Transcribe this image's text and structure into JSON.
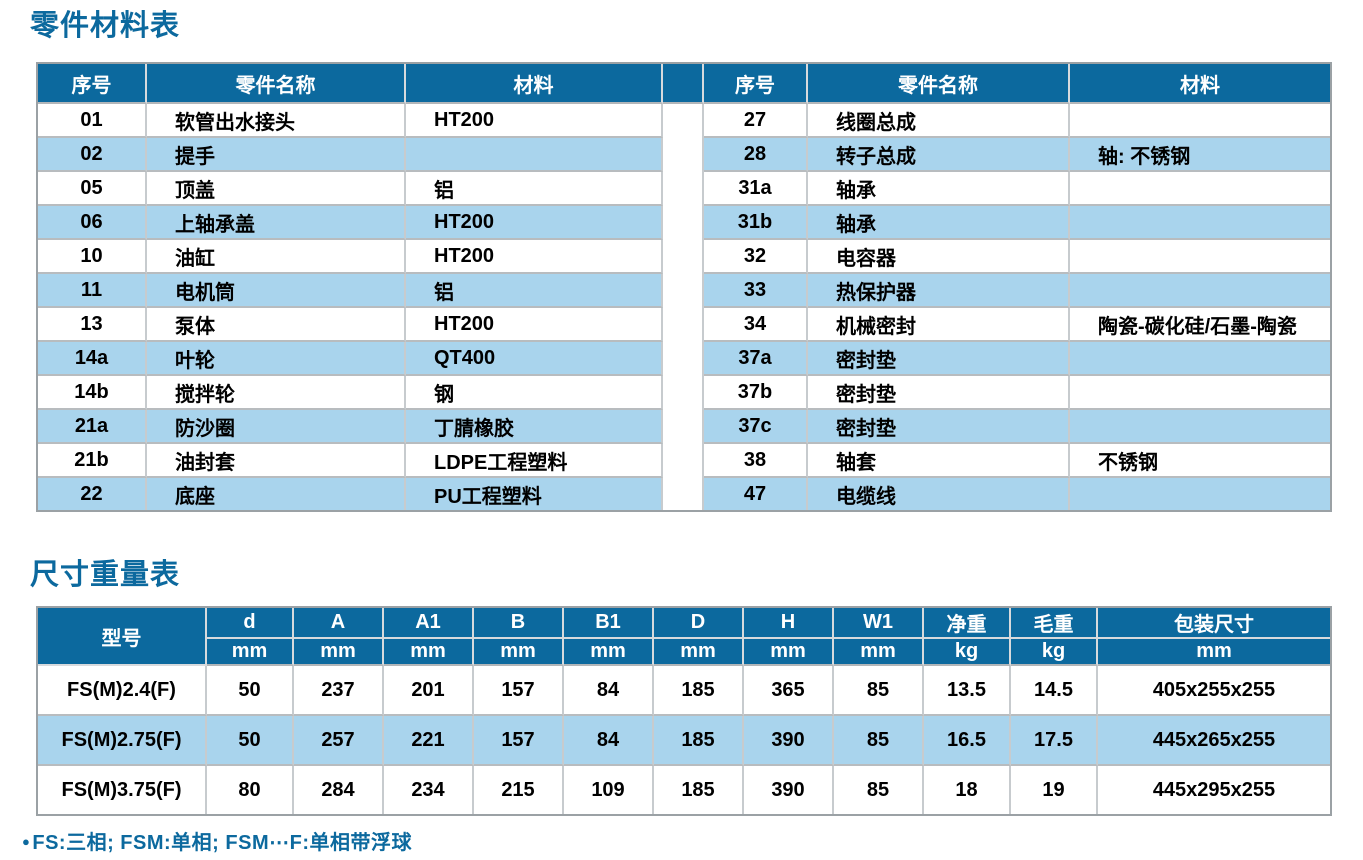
{
  "sections": {
    "parts": {
      "title": "零件材料表"
    },
    "size": {
      "title": "尺寸重量表"
    }
  },
  "parts_table": {
    "headers": [
      "序号",
      "零件名称",
      "材料"
    ],
    "left_rows": [
      {
        "no": "01",
        "name": "软管出水接头",
        "material": "HT200"
      },
      {
        "no": "02",
        "name": "提手",
        "material": ""
      },
      {
        "no": "05",
        "name": "顶盖",
        "material": "铝"
      },
      {
        "no": "06",
        "name": "上轴承盖",
        "material": "HT200"
      },
      {
        "no": "10",
        "name": "油缸",
        "material": "HT200"
      },
      {
        "no": "11",
        "name": "电机筒",
        "material": "铝"
      },
      {
        "no": "13",
        "name": "泵体",
        "material": "HT200"
      },
      {
        "no": "14a",
        "name": "叶轮",
        "material": "QT400"
      },
      {
        "no": "14b",
        "name": "搅拌轮",
        "material": "钢"
      },
      {
        "no": "21a",
        "name": "防沙圈",
        "material": "丁腈橡胶"
      },
      {
        "no": "21b",
        "name": "油封套",
        "material": "LDPE工程塑料"
      },
      {
        "no": "22",
        "name": "底座",
        "material": "PU工程塑料"
      }
    ],
    "right_rows": [
      {
        "no": "27",
        "name": "线圈总成",
        "material": ""
      },
      {
        "no": "28",
        "name": "转子总成",
        "material": "轴: 不锈钢"
      },
      {
        "no": "31a",
        "name": "轴承",
        "material": ""
      },
      {
        "no": "31b",
        "name": "轴承",
        "material": ""
      },
      {
        "no": "32",
        "name": "电容器",
        "material": ""
      },
      {
        "no": "33",
        "name": "热保护器",
        "material": ""
      },
      {
        "no": "34",
        "name": "机械密封",
        "material": "陶瓷-碳化硅/石墨-陶瓷"
      },
      {
        "no": "37a",
        "name": "密封垫",
        "material": ""
      },
      {
        "no": "37b",
        "name": "密封垫",
        "material": ""
      },
      {
        "no": "37c",
        "name": "密封垫",
        "material": ""
      },
      {
        "no": "38",
        "name": "轴套",
        "material": "不锈钢"
      },
      {
        "no": "47",
        "name": "电缆线",
        "material": ""
      }
    ]
  },
  "size_table": {
    "model_header": "型号",
    "columns": [
      {
        "label": "d",
        "unit": "mm"
      },
      {
        "label": "A",
        "unit": "mm"
      },
      {
        "label": "A1",
        "unit": "mm"
      },
      {
        "label": "B",
        "unit": "mm"
      },
      {
        "label": "B1",
        "unit": "mm"
      },
      {
        "label": "D",
        "unit": "mm"
      },
      {
        "label": "H",
        "unit": "mm"
      },
      {
        "label": "W1",
        "unit": "mm"
      },
      {
        "label": "净重",
        "unit": "kg"
      },
      {
        "label": "毛重",
        "unit": "kg"
      },
      {
        "label": "包装尺寸",
        "unit": "mm"
      }
    ],
    "rows": [
      {
        "model": "FS(M)2.4(F)",
        "values": [
          "50",
          "237",
          "201",
          "157",
          "84",
          "185",
          "365",
          "85",
          "13.5",
          "14.5",
          "405x255x255"
        ]
      },
      {
        "model": "FS(M)2.75(F)",
        "values": [
          "50",
          "257",
          "221",
          "157",
          "84",
          "185",
          "390",
          "85",
          "16.5",
          "17.5",
          "445x265x255"
        ]
      },
      {
        "model": "FS(M)3.75(F)",
        "values": [
          "80",
          "284",
          "234",
          "215",
          "109",
          "185",
          "390",
          "85",
          "18",
          "19",
          "445x295x255"
        ]
      }
    ]
  },
  "footnote": {
    "bullet": "●",
    "text": "FS:三相; FSM:单相; FSM⋯F:单相带浮球"
  },
  "colors": {
    "accent_blue": "#0c699e",
    "stripe_blue": "#a9d4ed",
    "border_gray": "#9ba1a5"
  }
}
